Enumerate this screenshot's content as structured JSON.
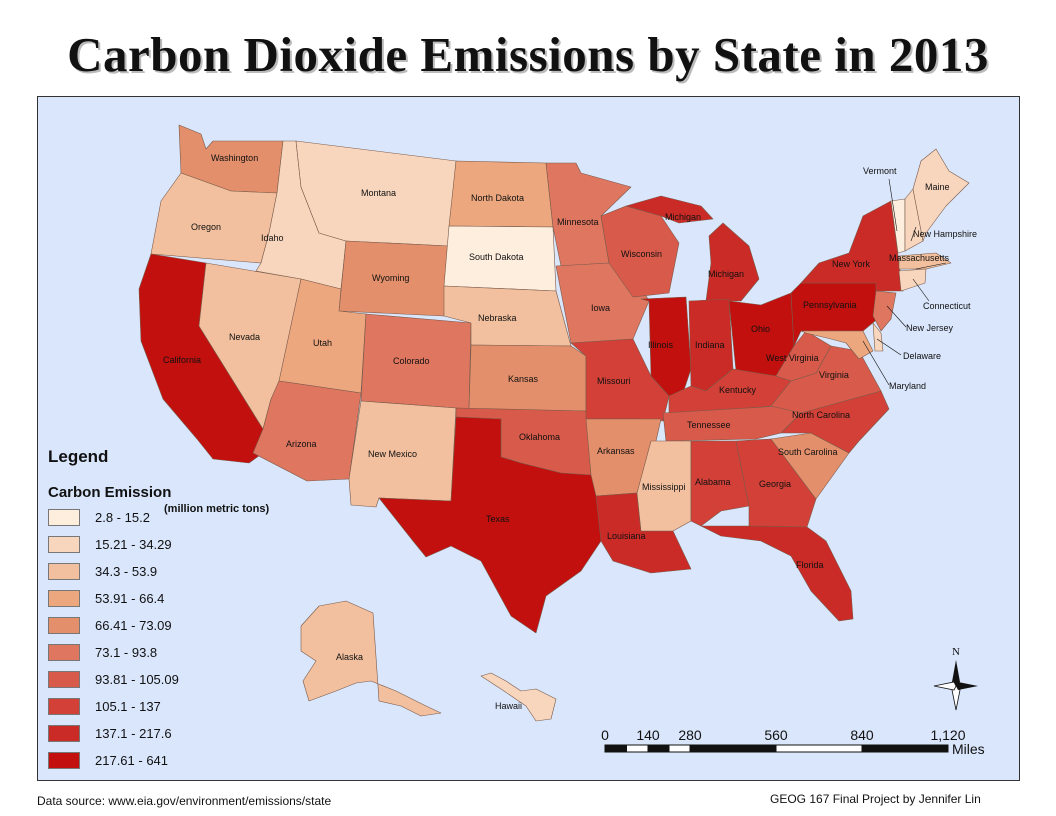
{
  "title": "Carbon Dioxide Emissions by State in 2013",
  "legend": {
    "title": "Legend",
    "field": "Carbon Emission",
    "units": "(million metric tons)",
    "classes": [
      {
        "label": "2.8 - 15.2",
        "color": "#fdeede"
      },
      {
        "label": "15.21 - 34.29",
        "color": "#f8d6bd"
      },
      {
        "label": "34.3 - 53.9",
        "color": "#f2c09e"
      },
      {
        "label": "53.91 - 66.4",
        "color": "#eca77f"
      },
      {
        "label": "66.41 - 73.09",
        "color": "#e48f6b"
      },
      {
        "label": "73.1 - 93.8",
        "color": "#df7660"
      },
      {
        "label": "93.81 - 105.09",
        "color": "#d85a4a"
      },
      {
        "label": "105.1 - 137",
        "color": "#d24037"
      },
      {
        "label": "137.1 - 217.6",
        "color": "#cb2b27"
      },
      {
        "label": "217.61 - 641",
        "color": "#c2100e"
      }
    ]
  },
  "states": {
    "washington": {
      "name": "Washington",
      "cls": 4
    },
    "oregon": {
      "name": "Oregon",
      "cls": 2
    },
    "california": {
      "name": "California",
      "cls": 9
    },
    "nevada": {
      "name": "Nevada",
      "cls": 2
    },
    "idaho": {
      "name": "Idaho",
      "cls": 1
    },
    "montana": {
      "name": "Montana",
      "cls": 1
    },
    "wyoming": {
      "name": "Wyoming",
      "cls": 4
    },
    "utah": {
      "name": "Utah",
      "cls": 3
    },
    "arizona": {
      "name": "Arizona",
      "cls": 5
    },
    "colorado": {
      "name": "Colorado",
      "cls": 5
    },
    "new_mexico": {
      "name": "New Mexico",
      "cls": 2
    },
    "north_dakota": {
      "name": "North Dakota",
      "cls": 3
    },
    "south_dakota": {
      "name": "South Dakota",
      "cls": 0
    },
    "nebraska": {
      "name": "Nebraska",
      "cls": 2
    },
    "kansas": {
      "name": "Kansas",
      "cls": 4
    },
    "oklahoma": {
      "name": "Oklahoma",
      "cls": 6
    },
    "texas": {
      "name": "Texas",
      "cls": 9
    },
    "minnesota": {
      "name": "Minnesota",
      "cls": 5
    },
    "iowa": {
      "name": "Iowa",
      "cls": 5
    },
    "missouri": {
      "name": "Missouri",
      "cls": 7
    },
    "arkansas": {
      "name": "Arkansas",
      "cls": 4
    },
    "louisiana": {
      "name": "Louisiana",
      "cls": 8
    },
    "wisconsin": {
      "name": "Wisconsin",
      "cls": 6
    },
    "illinois": {
      "name": "Illinois",
      "cls": 9
    },
    "michigan": {
      "name": "Michigan",
      "cls": 8
    },
    "michigan_up": {
      "name": "Michigan",
      "cls": 8
    },
    "indiana": {
      "name": "Indiana",
      "cls": 8
    },
    "ohio": {
      "name": "Ohio",
      "cls": 9
    },
    "kentucky": {
      "name": "Kentucky",
      "cls": 7
    },
    "tennessee": {
      "name": "Tennessee",
      "cls": 6
    },
    "mississippi": {
      "name": "Mississippi",
      "cls": 2
    },
    "alabama": {
      "name": "Alabama",
      "cls": 7
    },
    "georgia": {
      "name": "Georgia",
      "cls": 7
    },
    "florida": {
      "name": "Florida",
      "cls": 8
    },
    "south_carolina": {
      "name": "South Carolina",
      "cls": 4
    },
    "north_carolina": {
      "name": "North Carolina",
      "cls": 7
    },
    "virginia": {
      "name": "Virginia",
      "cls": 6
    },
    "west_virginia": {
      "name": "West Virginia",
      "cls": 6
    },
    "pennsylvania": {
      "name": "Pennsylvania",
      "cls": 9
    },
    "new_york": {
      "name": "New York",
      "cls": 8
    },
    "new_jersey": {
      "name": "New Jersey",
      "cls": 5
    },
    "delaware": {
      "name": "Delaware",
      "cls": 1
    },
    "maryland": {
      "name": "Maryland",
      "cls": 3
    },
    "connecticut": {
      "name": "Connecticut",
      "cls": 1
    },
    "massachusetts": {
      "name": "Massachusetts",
      "cls": 2
    },
    "vermont": {
      "name": "Vermont",
      "cls": 0
    },
    "new_hampshire": {
      "name": "New Hampshire",
      "cls": 1
    },
    "maine": {
      "name": "Maine",
      "cls": 1
    },
    "alaska": {
      "name": "Alaska",
      "cls": 2
    },
    "hawaii": {
      "name": "Hawaii",
      "cls": 1
    }
  },
  "scale": {
    "ticks": [
      "0",
      "140",
      "280",
      "560",
      "840",
      "1,120"
    ],
    "unit": "Miles"
  },
  "north_label": "N",
  "source": "Data source: www.eia.gov/environment/emissions/state",
  "credit": "GEOG 167 Final Project by Jennifer Lin"
}
